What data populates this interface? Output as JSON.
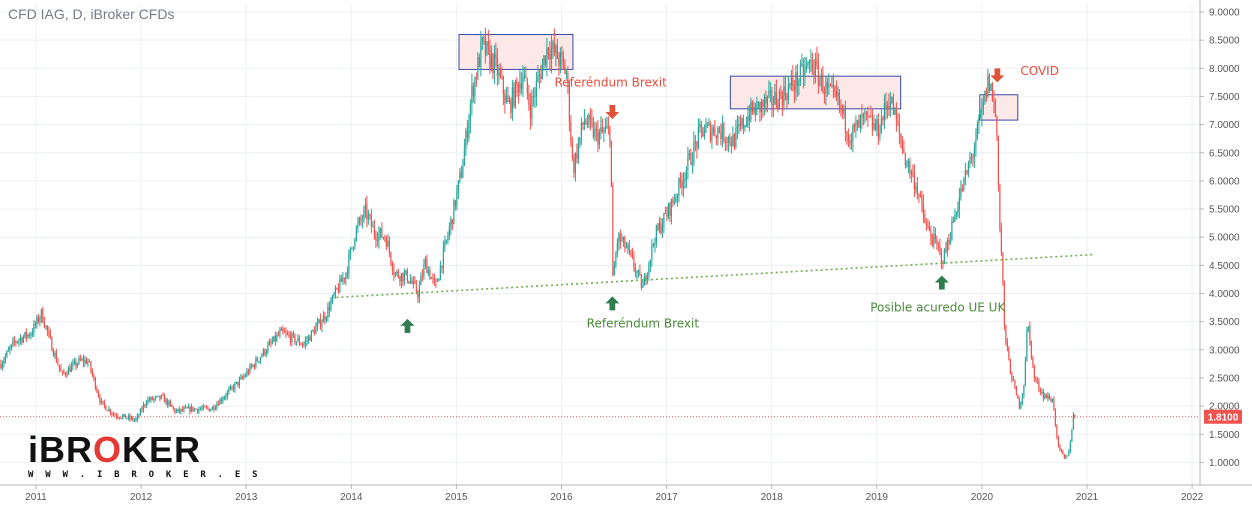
{
  "header": {
    "title": "CFD IAG, D, iBroker CFDs"
  },
  "logo": {
    "main_prefix": "iBR",
    "main_o": "O",
    "main_suffix": "KER",
    "sub": "W W W . I B R O K E R . E S"
  },
  "colors": {
    "up": "#26a69a",
    "down": "#ef5350",
    "grid": "#eceff3",
    "support": "#6ab04c",
    "last": "#ef5350",
    "box_fill": "#fde8e8",
    "box_stroke": "#3949ab",
    "red_arrow": "#e0533b",
    "green_arrow": "#2e7d4f",
    "axis_text": "#555555"
  },
  "chart_data": {
    "type": "candlestick",
    "title": "CFD IAG, D, iBroker CFDs",
    "x_ticks": [
      "2011",
      "2012",
      "2013",
      "2014",
      "2015",
      "2016",
      "2017",
      "2018",
      "2019",
      "2020",
      "2021",
      "2022"
    ],
    "y_ticks": [
      "9.0000",
      "8.5000",
      "8.0000",
      "7.5000",
      "7.0000",
      "6.5000",
      "6.0000",
      "5.5000",
      "5.0000",
      "4.5000",
      "4.0000",
      "3.5000",
      "3.0000",
      "2.5000",
      "2.0000",
      "1.5000",
      "1.0000"
    ],
    "ylim": [
      0.55,
      9.1
    ],
    "grid": true,
    "last_price": {
      "value": 1.81,
      "label": "1.8100"
    },
    "price_path": [
      [
        "2010-09-01",
        2.75
      ],
      [
        "2010-10-20",
        3.15
      ],
      [
        "2010-12-15",
        3.3
      ],
      [
        "2011-01-20",
        3.65
      ],
      [
        "2011-03-01",
        3.0
      ],
      [
        "2011-04-01",
        2.55
      ],
      [
        "2011-06-01",
        2.8
      ],
      [
        "2011-07-01",
        2.8
      ],
      [
        "2011-08-15",
        2.05
      ],
      [
        "2011-10-01",
        1.85
      ],
      [
        "2011-12-15",
        1.75
      ],
      [
        "2012-01-20",
        2.1
      ],
      [
        "2012-03-15",
        2.15
      ],
      [
        "2012-05-01",
        1.9
      ],
      [
        "2012-06-20",
        1.95
      ],
      [
        "2012-09-01",
        1.95
      ],
      [
        "2012-12-20",
        2.5
      ],
      [
        "2013-03-01",
        2.95
      ],
      [
        "2013-05-01",
        3.3
      ],
      [
        "2013-07-20",
        3.1
      ],
      [
        "2013-10-01",
        3.6
      ],
      [
        "2013-12-15",
        4.4
      ],
      [
        "2014-01-15",
        5.1
      ],
      [
        "2014-02-20",
        5.45
      ],
      [
        "2014-03-20",
        5.1
      ],
      [
        "2014-05-01",
        5.0
      ],
      [
        "2014-06-01",
        4.35
      ],
      [
        "2014-07-15",
        4.3
      ],
      [
        "2014-08-20",
        4.0
      ],
      [
        "2014-09-15",
        4.55
      ],
      [
        "2014-10-20",
        4.1
      ],
      [
        "2014-12-15",
        5.3
      ],
      [
        "2015-01-20",
        6.2
      ],
      [
        "2015-02-25",
        7.6
      ],
      [
        "2015-04-01",
        8.4
      ],
      [
        "2015-05-20",
        8.0
      ],
      [
        "2015-07-01",
        7.3
      ],
      [
        "2015-08-20",
        7.9
      ],
      [
        "2015-09-15",
        7.3
      ],
      [
        "2015-11-15",
        8.4
      ],
      [
        "2015-12-20",
        8.2
      ],
      [
        "2016-01-20",
        7.9
      ],
      [
        "2016-02-10",
        6.2
      ],
      [
        "2016-03-20",
        7.1
      ],
      [
        "2016-05-01",
        6.8
      ],
      [
        "2016-06-20",
        6.9
      ],
      [
        "2016-06-27",
        4.2
      ],
      [
        "2016-07-15",
        5.0
      ],
      [
        "2016-08-15",
        4.8
      ],
      [
        "2016-10-10",
        4.1
      ],
      [
        "2016-11-20",
        5.0
      ],
      [
        "2017-01-20",
        5.6
      ],
      [
        "2017-03-01",
        6.1
      ],
      [
        "2017-05-01",
        6.9
      ],
      [
        "2017-07-01",
        6.9
      ],
      [
        "2017-08-20",
        6.7
      ],
      [
        "2017-10-15",
        7.2
      ],
      [
        "2017-12-20",
        7.4
      ],
      [
        "2018-02-01",
        7.5
      ],
      [
        "2018-04-01",
        7.8
      ],
      [
        "2018-05-20",
        8.1
      ],
      [
        "2018-07-10",
        7.6
      ],
      [
        "2018-08-20",
        7.4
      ],
      [
        "2018-10-01",
        6.8
      ],
      [
        "2018-11-20",
        7.1
      ],
      [
        "2019-01-05",
        6.9
      ],
      [
        "2019-02-15",
        7.5
      ],
      [
        "2019-04-10",
        6.4
      ],
      [
        "2019-05-20",
        5.9
      ],
      [
        "2019-06-20",
        5.2
      ],
      [
        "2019-08-01",
        4.8
      ],
      [
        "2019-08-20",
        4.6
      ],
      [
        "2019-10-15",
        5.7
      ],
      [
        "2019-12-01",
        6.5
      ],
      [
        "2020-01-05",
        7.3
      ],
      [
        "2020-01-25",
        7.8
      ],
      [
        "2020-02-15",
        7.3
      ],
      [
        "2020-02-24",
        6.7
      ],
      [
        "2020-03-03",
        5.2
      ],
      [
        "2020-03-12",
        4.5
      ],
      [
        "2020-03-20",
        3.3
      ],
      [
        "2020-04-10",
        2.6
      ],
      [
        "2020-05-10",
        2.0
      ],
      [
        "2020-05-25",
        2.3
      ],
      [
        "2020-06-08",
        3.5
      ],
      [
        "2020-07-01",
        2.5
      ],
      [
        "2020-08-01",
        2.2
      ],
      [
        "2020-09-05",
        2.1
      ],
      [
        "2020-09-20",
        1.3
      ],
      [
        "2020-10-15",
        1.05
      ],
      [
        "2020-10-30",
        1.2
      ],
      [
        "2020-11-15",
        1.85
      ],
      [
        "2020-11-20",
        1.81
      ]
    ],
    "annotations": {
      "support_line": {
        "from": [
          "2013-11-10",
          3.93
        ],
        "to": [
          "2021-01-20",
          4.69
        ],
        "style": "dotted"
      },
      "resistance_boxes": [
        {
          "x0": "2015-01-10",
          "x1": "2016-02-10",
          "y0": 7.98,
          "y1": 8.6
        },
        {
          "x0": "2017-08-10",
          "x1": "2019-03-25",
          "y0": 7.28,
          "y1": 7.86
        },
        {
          "x0": "2019-12-25",
          "x1": "2020-05-05",
          "y0": 7.08,
          "y1": 7.53
        }
      ],
      "labels": [
        {
          "text": "Referéndum Brexit",
          "color": "red",
          "at": [
            "2016-06-20",
            7.68
          ]
        },
        {
          "text": "COVID",
          "color": "red",
          "at": [
            "2020-07-20",
            7.88
          ]
        },
        {
          "text": "Referéndum Brexit",
          "color": "green",
          "at": [
            "2016-10-10",
            3.4
          ]
        },
        {
          "text": "Posible acuredo UE UK",
          "color": "green",
          "at": [
            "2019-08-01",
            3.68
          ]
        }
      ],
      "red_arrows": [
        [
          "2016-06-26",
          7.1
        ],
        [
          "2020-02-24",
          7.75
        ]
      ],
      "green_arrows": [
        [
          "2014-07-15",
          3.55
        ],
        [
          "2016-06-26",
          3.95
        ],
        [
          "2019-08-15",
          4.32
        ]
      ]
    }
  }
}
